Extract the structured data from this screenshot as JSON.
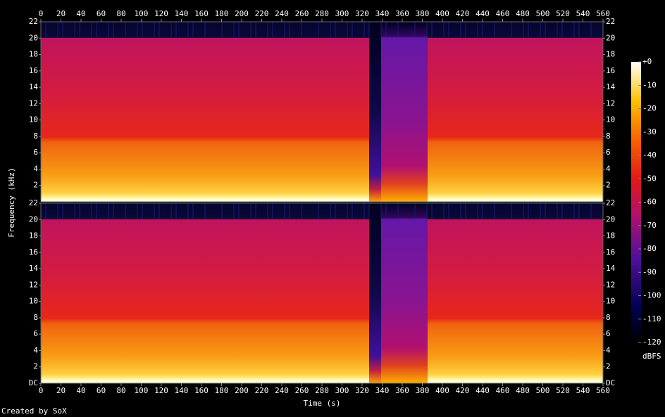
{
  "chart_data": [
    {
      "type": "spectrogram",
      "y_label": "Frequency (kHz)",
      "xlim": [
        0,
        560
      ],
      "xticks": [
        0,
        20,
        40,
        60,
        80,
        100,
        120,
        140,
        160,
        180,
        200,
        220,
        240,
        260,
        280,
        300,
        320,
        340,
        360,
        380,
        400,
        420,
        440,
        460,
        480,
        500,
        520,
        540,
        560
      ],
      "ylim": [
        0,
        22
      ],
      "yticks": [
        2,
        4,
        6,
        8,
        10,
        12,
        14,
        16,
        18,
        20,
        22
      ]
    },
    {
      "type": "spectrogram",
      "x_label": "Time (s)",
      "xlim": [
        0,
        560
      ],
      "xticks": [
        0,
        20,
        40,
        60,
        80,
        100,
        120,
        140,
        160,
        180,
        200,
        220,
        240,
        260,
        280,
        300,
        320,
        340,
        360,
        380,
        400,
        420,
        440,
        460,
        480,
        500,
        520,
        540,
        560
      ],
      "ylim": [
        0,
        22
      ],
      "yticks": [
        {
          "value": 0,
          "label": "DC"
        },
        2,
        4,
        6,
        8,
        10,
        12,
        14,
        16,
        18,
        20,
        22
      ]
    }
  ],
  "colorbar": {
    "label": "dBFS",
    "lim": [
      -120,
      0
    ],
    "ticks": [
      {
        "value": 0,
        "label": "+0"
      },
      -10,
      -20,
      -30,
      -40,
      -50,
      -60,
      -70,
      -80,
      -90,
      -100,
      -110,
      -120
    ]
  },
  "credit": "Created by SoX"
}
